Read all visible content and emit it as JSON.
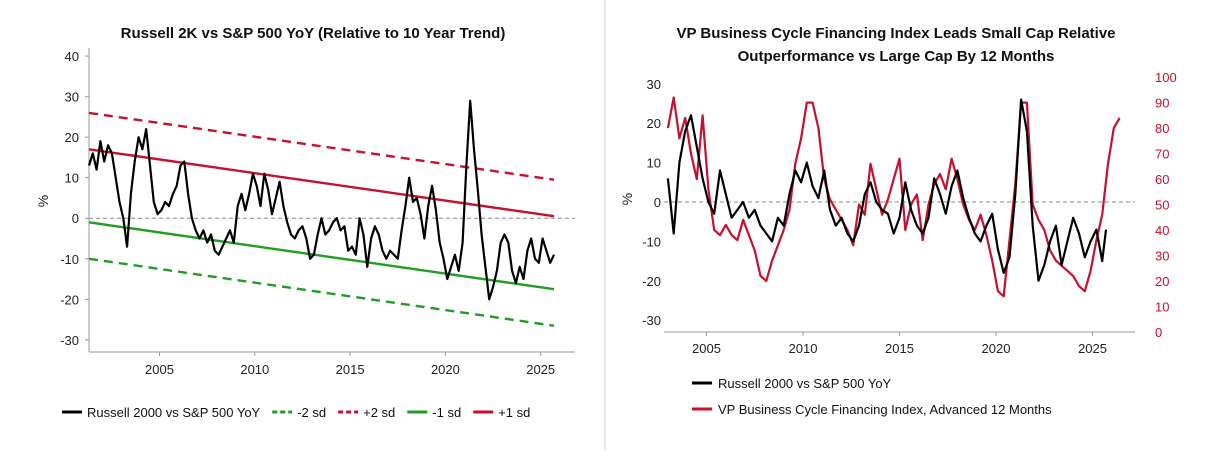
{
  "colors": {
    "black": "#000000",
    "red": "#c8102e",
    "green": "#1f9e1f",
    "axis": "#999999",
    "zero": "#888888",
    "divider": "#d0d0d0"
  },
  "chart_data": [
    {
      "type": "line",
      "title": "Russell 2K vs S&P 500 YoY (Relative to 10 Year Trend)",
      "xlabel": "",
      "ylabel": "%",
      "xlim": [
        2001.3,
        2026.8
      ],
      "ylim": [
        -33,
        42
      ],
      "x_ticks": [
        "2005",
        "2010",
        "2015",
        "2020",
        "2025"
      ],
      "x_tick_values": [
        2005,
        2010,
        2015,
        2020,
        2025
      ],
      "y_ticks": [
        "-30",
        "-20",
        "-10",
        "0",
        "10",
        "20",
        "30",
        "40"
      ],
      "y_tick_values": [
        -30,
        -20,
        -10,
        0,
        10,
        20,
        30,
        40
      ],
      "zero_line": true,
      "legend": [
        "Russell 2000 vs S&P 500 YoY",
        "-2 sd",
        "+2 sd",
        "-1 sd",
        "+1 sd"
      ],
      "series": [
        {
          "name": "Russell 2000 vs S&P 500 YoY",
          "color": "#000000",
          "style": "solid",
          "x": [
            2001.3,
            2001.5,
            2001.7,
            2001.9,
            2002.1,
            2002.3,
            2002.5,
            2002.7,
            2002.9,
            2003.1,
            2003.3,
            2003.5,
            2003.7,
            2003.9,
            2004.1,
            2004.3,
            2004.5,
            2004.7,
            2004.9,
            2005.1,
            2005.3,
            2005.5,
            2005.7,
            2005.9,
            2006.1,
            2006.3,
            2006.5,
            2006.7,
            2006.9,
            2007.1,
            2007.3,
            2007.5,
            2007.7,
            2007.9,
            2008.1,
            2008.3,
            2008.5,
            2008.7,
            2008.9,
            2009.1,
            2009.3,
            2009.5,
            2009.7,
            2009.9,
            2010.1,
            2010.3,
            2010.5,
            2010.7,
            2010.9,
            2011.1,
            2011.3,
            2011.5,
            2011.7,
            2011.9,
            2012.1,
            2012.3,
            2012.5,
            2012.7,
            2012.9,
            2013.1,
            2013.3,
            2013.5,
            2013.7,
            2013.9,
            2014.1,
            2014.3,
            2014.5,
            2014.7,
            2014.9,
            2015.1,
            2015.3,
            2015.5,
            2015.7,
            2015.9,
            2016.1,
            2016.3,
            2016.5,
            2016.7,
            2016.9,
            2017.1,
            2017.3,
            2017.5,
            2017.7,
            2017.9,
            2018.1,
            2018.3,
            2018.5,
            2018.7,
            2018.9,
            2019.1,
            2019.3,
            2019.5,
            2019.7,
            2019.9,
            2020.1,
            2020.3,
            2020.5,
            2020.7,
            2020.9,
            2021.1,
            2021.3,
            2021.5,
            2021.7,
            2021.9,
            2022.1,
            2022.3,
            2022.5,
            2022.7,
            2022.9,
            2023.1,
            2023.3,
            2023.5,
            2023.7,
            2023.9,
            2024.1,
            2024.3,
            2024.5,
            2024.7,
            2024.9,
            2025.1,
            2025.3,
            2025.5,
            2025.7
          ],
          "y": [
            13,
            16,
            12,
            19,
            14,
            18,
            16,
            10,
            4,
            0,
            -7,
            6,
            14,
            20,
            17,
            22,
            13,
            4,
            1,
            2,
            4,
            3,
            6,
            8,
            13,
            14,
            6,
            0,
            -3,
            -5,
            -3,
            -6,
            -4,
            -8,
            -9,
            -7,
            -5,
            -3,
            -6,
            3,
            6,
            2,
            6,
            11,
            8,
            3,
            11,
            7,
            1,
            5,
            9,
            3,
            -1,
            -4,
            -5,
            -3,
            -2,
            -5,
            -10,
            -9,
            -4,
            0,
            -4,
            -3,
            -1,
            0,
            -3,
            -2,
            -8,
            -7,
            -9,
            0,
            -4,
            -12,
            -5,
            -2,
            -4,
            -8,
            -10,
            -8,
            -9,
            -10,
            -3,
            3,
            10,
            4,
            5,
            1,
            -5,
            3,
            8,
            2,
            -6,
            -10,
            -15,
            -12,
            -9,
            -13,
            -6,
            13,
            29,
            17,
            7,
            -4,
            -12,
            -20,
            -17,
            -13,
            -6,
            -4,
            -6,
            -13,
            -16,
            -12,
            -15,
            -8,
            -5,
            -10,
            -11,
            -5,
            -8,
            -11,
            -9
          ]
        },
        {
          "name": "-2 sd",
          "color": "#1f9e1f",
          "style": "dashed",
          "x": [
            2001.3,
            2025.7
          ],
          "y": [
            -10,
            -26.5
          ]
        },
        {
          "name": "+2 sd",
          "color": "#c8102e",
          "style": "dashed",
          "x": [
            2001.3,
            2025.7
          ],
          "y": [
            26,
            9.5
          ]
        },
        {
          "name": "-1 sd",
          "color": "#1f9e1f",
          "style": "solid",
          "x": [
            2001.3,
            2025.7
          ],
          "y": [
            -1,
            -17.5
          ]
        },
        {
          "name": "+1 sd",
          "color": "#c8102e",
          "style": "solid",
          "x": [
            2001.3,
            2025.7
          ],
          "y": [
            17,
            0.5
          ]
        }
      ]
    },
    {
      "type": "line",
      "title": "VP Business Cycle Financing Index Leads Small Cap Relative Outperformance vs Large Cap By 12 Months",
      "title_lines": [
        "VP Business Cycle Financing Index Leads Small Cap Relative",
        "Outperformance vs Large Cap By 12 Months"
      ],
      "xlabel": "",
      "ylabel": "%",
      "xlim": [
        2002.8,
        2027.2
      ],
      "ylim": [
        -33,
        33
      ],
      "y2lim": [
        0,
        102
      ],
      "x_ticks": [
        "2005",
        "2010",
        "2015",
        "2020",
        "2025"
      ],
      "x_tick_values": [
        2005,
        2010,
        2015,
        2020,
        2025
      ],
      "y_ticks": [
        "-30",
        "-20",
        "-10",
        "0",
        "10",
        "20",
        "30"
      ],
      "y_tick_values": [
        -30,
        -20,
        -10,
        0,
        10,
        20,
        30
      ],
      "y2_ticks": [
        "0",
        "10",
        "20",
        "30",
        "40",
        "50",
        "60",
        "70",
        "80",
        "90",
        "100"
      ],
      "y2_tick_values": [
        0,
        10,
        20,
        30,
        40,
        50,
        60,
        70,
        80,
        90,
        100
      ],
      "zero_line": true,
      "legend": [
        "Russell 2000 vs S&P 500 YoY",
        "VP Business Cycle Financing Index, Advanced 12 Months"
      ],
      "series": [
        {
          "name": "Russell 2000 vs S&P 500 YoY",
          "color": "#000000",
          "axis": "left",
          "x": [
            2003.0,
            2003.3,
            2003.6,
            2003.9,
            2004.2,
            2004.5,
            2004.8,
            2005.1,
            2005.4,
            2005.7,
            2006.0,
            2006.3,
            2006.6,
            2006.9,
            2007.2,
            2007.5,
            2007.8,
            2008.1,
            2008.4,
            2008.7,
            2009.0,
            2009.3,
            2009.6,
            2009.9,
            2010.2,
            2010.5,
            2010.8,
            2011.1,
            2011.4,
            2011.7,
            2012.0,
            2012.3,
            2012.6,
            2012.9,
            2013.2,
            2013.5,
            2013.8,
            2014.1,
            2014.4,
            2014.7,
            2015.0,
            2015.3,
            2015.6,
            2015.9,
            2016.2,
            2016.5,
            2016.8,
            2017.1,
            2017.4,
            2017.7,
            2018.0,
            2018.3,
            2018.6,
            2018.9,
            2019.2,
            2019.5,
            2019.8,
            2020.1,
            2020.4,
            2020.7,
            2021.0,
            2021.3,
            2021.6,
            2021.9,
            2022.2,
            2022.5,
            2022.8,
            2023.1,
            2023.4,
            2023.7,
            2024.0,
            2024.3,
            2024.6,
            2024.9,
            2025.2,
            2025.5,
            2025.7
          ],
          "y": [
            6,
            -8,
            10,
            18,
            22,
            14,
            6,
            0,
            -3,
            8,
            2,
            -4,
            -2,
            0,
            -4,
            -2,
            -6,
            -8,
            -10,
            -4,
            -6,
            2,
            8,
            5,
            10,
            4,
            1,
            8,
            -2,
            -6,
            -4,
            -8,
            -10,
            -6,
            2,
            5,
            0,
            -2,
            -3,
            -8,
            -4,
            5,
            -2,
            -6,
            -8,
            -4,
            6,
            2,
            -3,
            4,
            8,
            1,
            -4,
            -8,
            -10,
            -6,
            -3,
            -12,
            -18,
            -14,
            2,
            26,
            18,
            -6,
            -20,
            -16,
            -10,
            -6,
            -16,
            -10,
            -4,
            -8,
            -14,
            -10,
            -7,
            -15,
            -7
          ]
        },
        {
          "name": "VP Business Cycle Financing Index, Advanced 12 Months",
          "color": "#c8102e",
          "axis": "right",
          "x": [
            2003.0,
            2003.3,
            2003.6,
            2003.9,
            2004.2,
            2004.5,
            2004.8,
            2005.1,
            2005.4,
            2005.7,
            2006.0,
            2006.3,
            2006.6,
            2006.9,
            2007.2,
            2007.5,
            2007.8,
            2008.1,
            2008.4,
            2008.7,
            2009.0,
            2009.3,
            2009.6,
            2009.9,
            2010.2,
            2010.5,
            2010.8,
            2011.1,
            2011.4,
            2011.7,
            2012.0,
            2012.3,
            2012.6,
            2012.9,
            2013.2,
            2013.5,
            2013.8,
            2014.1,
            2014.4,
            2014.7,
            2015.0,
            2015.3,
            2015.6,
            2015.9,
            2016.2,
            2016.5,
            2016.8,
            2017.1,
            2017.4,
            2017.7,
            2018.0,
            2018.3,
            2018.6,
            2018.9,
            2019.2,
            2019.5,
            2019.8,
            2020.1,
            2020.4,
            2020.7,
            2021.0,
            2021.3,
            2021.6,
            2021.9,
            2022.2,
            2022.5,
            2022.8,
            2023.1,
            2023.4,
            2023.7,
            2024.0,
            2024.3,
            2024.6,
            2024.9,
            2025.2,
            2025.5,
            2025.8,
            2026.1,
            2026.4
          ],
          "y": [
            80,
            92,
            76,
            84,
            70,
            60,
            85,
            56,
            40,
            38,
            42,
            38,
            36,
            44,
            38,
            32,
            22,
            20,
            28,
            34,
            40,
            48,
            66,
            76,
            90,
            90,
            80,
            60,
            52,
            48,
            44,
            40,
            34,
            50,
            46,
            66,
            56,
            46,
            52,
            60,
            68,
            40,
            50,
            54,
            36,
            50,
            58,
            62,
            56,
            68,
            60,
            50,
            44,
            40,
            46,
            38,
            28,
            16,
            14,
            36,
            58,
            90,
            90,
            50,
            44,
            40,
            32,
            28,
            26,
            24,
            22,
            18,
            16,
            24,
            36,
            46,
            66,
            80,
            84
          ]
        }
      ]
    }
  ]
}
